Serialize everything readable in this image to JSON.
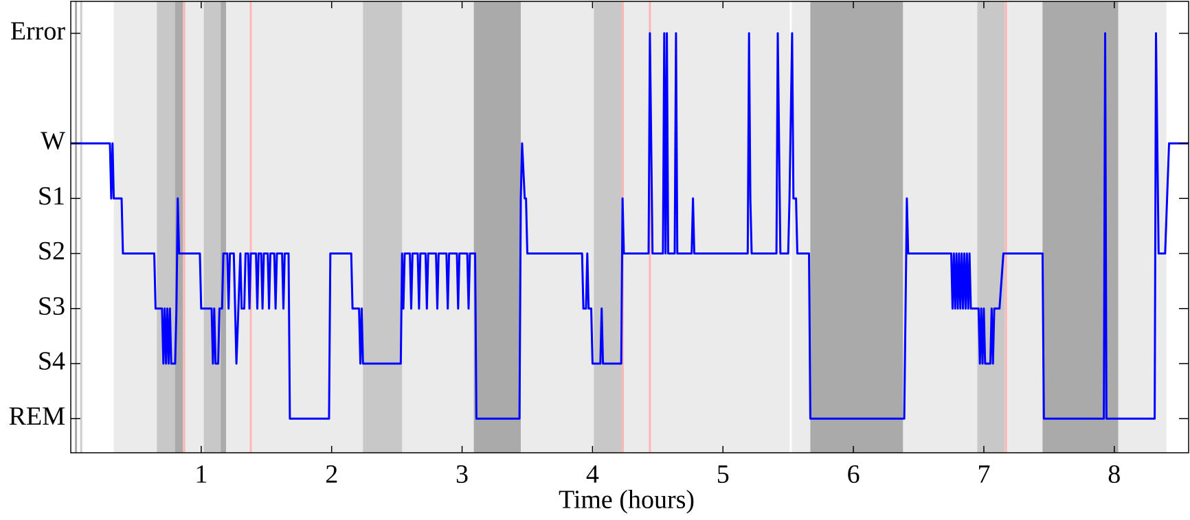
{
  "chart_data": {
    "type": "line",
    "xlabel": "Time (hours)",
    "color": "#0000ff",
    "xlim": [
      0,
      8.57
    ],
    "ylim": [
      -0.62,
      7.58
    ],
    "xticks": [
      1,
      2,
      3,
      4,
      5,
      6,
      7,
      8
    ],
    "yticks": [
      {
        "value": 0,
        "label": "REM"
      },
      {
        "value": 1,
        "label": "S4"
      },
      {
        "value": 2,
        "label": "S3"
      },
      {
        "value": 3,
        "label": "S2"
      },
      {
        "value": 4,
        "label": "S1"
      },
      {
        "value": 5,
        "label": "W"
      },
      {
        "value": 7,
        "label": "Error"
      }
    ],
    "bands": [
      {
        "start": 0.33,
        "end": 8.4,
        "color": "#ebebeb"
      },
      {
        "start": 0.66,
        "end": 0.85,
        "color": "#c8c8c8"
      },
      {
        "start": 1.02,
        "end": 1.19,
        "color": "#c8c8c8"
      },
      {
        "start": 2.24,
        "end": 2.54,
        "color": "#c8c8c8"
      },
      {
        "start": 4.01,
        "end": 4.24,
        "color": "#c8c8c8"
      },
      {
        "start": 6.95,
        "end": 7.16,
        "color": "#c8c8c8"
      },
      {
        "start": 0.8,
        "end": 0.86,
        "color": "#aaaaaa"
      },
      {
        "start": 1.15,
        "end": 1.19,
        "color": "#aaaaaa"
      },
      {
        "start": 3.09,
        "end": 3.45,
        "color": "#aaaaaa"
      },
      {
        "start": 5.67,
        "end": 6.38,
        "color": "#aaaaaa"
      },
      {
        "start": 7.45,
        "end": 8.03,
        "color": "#aaaaaa"
      }
    ],
    "vlines": [
      {
        "x": 0.04,
        "color": "#aaaaaa"
      },
      {
        "x": 0.08,
        "color": "#cccccc"
      },
      {
        "x": 0.87,
        "color": "#ffb6b6"
      },
      {
        "x": 1.38,
        "color": "#ffb6b6"
      },
      {
        "x": 4.23,
        "color": "#ffb6b6"
      },
      {
        "x": 4.44,
        "color": "#ffb6b6"
      },
      {
        "x": 7.17,
        "color": "#ffb6b6"
      },
      {
        "x": 5.52,
        "color": "#ffffff"
      }
    ],
    "x": [
      0,
      0.3,
      0.31,
      0.32,
      0.33,
      0.39,
      0.4,
      0.64,
      0.65,
      0.7,
      0.71,
      0.72,
      0.73,
      0.74,
      0.75,
      0.76,
      0.77,
      0.8,
      0.81,
      0.82,
      0.83,
      0.99,
      1.0,
      1.08,
      1.09,
      1.1,
      1.11,
      1.13,
      1.14,
      1.16,
      1.17,
      1.2,
      1.21,
      1.22,
      1.25,
      1.27,
      1.3,
      1.31,
      1.33,
      1.34,
      1.36,
      1.37,
      1.38,
      1.42,
      1.43,
      1.44,
      1.46,
      1.47,
      1.48,
      1.51,
      1.52,
      1.53,
      1.56,
      1.57,
      1.58,
      1.62,
      1.63,
      1.64,
      1.67,
      1.68,
      1.98,
      1.99,
      2.15,
      2.16,
      2.21,
      2.22,
      2.23,
      2.24,
      2.53,
      2.54,
      2.55,
      2.56,
      2.6,
      2.61,
      2.62,
      2.66,
      2.67,
      2.68,
      2.72,
      2.73,
      2.74,
      2.8,
      2.81,
      2.82,
      2.88,
      2.89,
      2.9,
      2.96,
      2.97,
      2.98,
      3.04,
      3.05,
      3.06,
      3.1,
      3.11,
      3.44,
      3.45,
      3.46,
      3.48,
      3.49,
      3.5,
      3.92,
      3.93,
      3.95,
      3.96,
      3.97,
      3.99,
      4.0,
      4.06,
      4.07,
      4.08,
      4.22,
      4.23,
      4.24,
      4.43,
      4.44,
      4.46,
      4.54,
      4.55,
      4.56,
      4.57,
      4.58,
      4.63,
      4.64,
      4.65,
      4.76,
      4.77,
      4.78,
      5.19,
      5.2,
      5.21,
      5.22,
      5.41,
      5.42,
      5.44,
      5.5,
      5.51,
      5.53,
      5.54,
      5.56,
      5.57,
      5.66,
      5.67,
      6.39,
      6.41,
      6.42,
      6.75,
      6.76,
      6.77,
      6.78,
      6.79,
      6.8,
      6.81,
      6.82,
      6.83,
      6.84,
      6.85,
      6.86,
      6.87,
      6.88,
      6.89,
      6.9,
      6.96,
      6.97,
      6.98,
      6.99,
      7.0,
      7.01,
      7.05,
      7.06,
      7.07,
      7.08,
      7.12,
      7.15,
      7.45,
      7.46,
      7.92,
      7.93,
      7.94,
      8.31,
      8.32,
      8.34,
      8.39,
      8.42,
      8.57
    ],
    "values": [
      5,
      5,
      4,
      5,
      4,
      4,
      3,
      3,
      2,
      2,
      1,
      2,
      1,
      2,
      1,
      2,
      1,
      1,
      2,
      4,
      3,
      3,
      2,
      2,
      1,
      2,
      1,
      1,
      2,
      2,
      3,
      3,
      2,
      3,
      3,
      1,
      3,
      2,
      2,
      3,
      3,
      2,
      3,
      3,
      2,
      3,
      3,
      2,
      3,
      3,
      2,
      3,
      3,
      2,
      3,
      3,
      2,
      3,
      3,
      0,
      0,
      3,
      3,
      2,
      2,
      1,
      2,
      1,
      1,
      3,
      2,
      3,
      3,
      2,
      3,
      3,
      2,
      3,
      3,
      2,
      3,
      3,
      2,
      3,
      3,
      2,
      3,
      3,
      2,
      3,
      3,
      2,
      3,
      3,
      0,
      0,
      4,
      5,
      4,
      4,
      3,
      3,
      2,
      2,
      3,
      2,
      2,
      1,
      1,
      2,
      1,
      1,
      4,
      3,
      3,
      7,
      3,
      3,
      7,
      3,
      7,
      3,
      3,
      7,
      3,
      3,
      4,
      3,
      3,
      7,
      4,
      3,
      3,
      7,
      3,
      3,
      4,
      7,
      4,
      4,
      3,
      3,
      0,
      0,
      4,
      3,
      3,
      2,
      3,
      2,
      3,
      2,
      3,
      2,
      3,
      2,
      3,
      2,
      3,
      2,
      3,
      2,
      2,
      1,
      2,
      1,
      2,
      1,
      1,
      2,
      1,
      2,
      2,
      3,
      3,
      0,
      0,
      7,
      0,
      0,
      7,
      3,
      3,
      5,
      5
    ]
  }
}
